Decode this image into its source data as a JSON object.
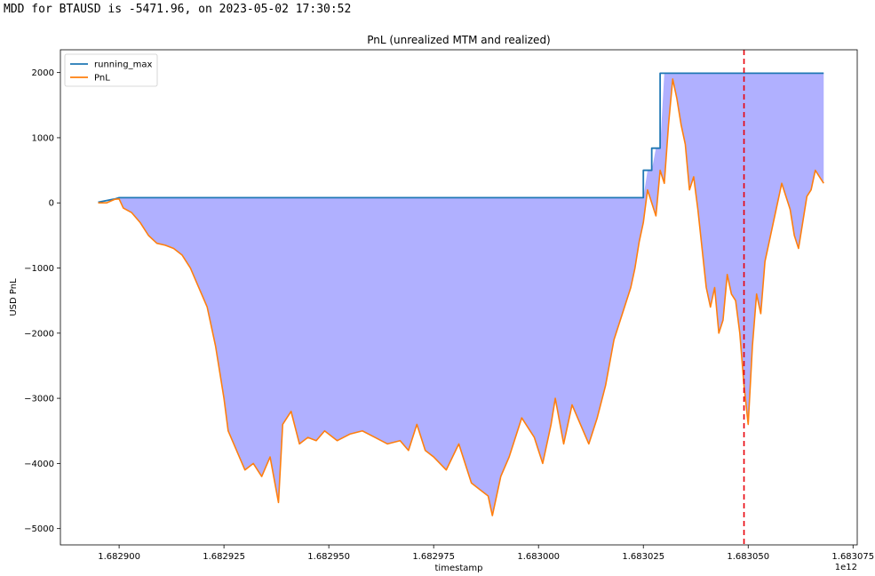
{
  "header": {
    "text": "MDD for BTAUSD is -5471.96, on 2023-05-02 17:30:52"
  },
  "chart_data": {
    "type": "line",
    "title": "PnL (unrealized MTM and realized)",
    "xlabel": "timestamp",
    "ylabel": "USD PnL",
    "x_offset_label": "1e12",
    "xlim": [
      1682886000,
      1683076000
    ],
    "ylim": [
      -5250,
      2350
    ],
    "x_ticks": [
      1682900000,
      1682925000,
      1682950000,
      1682975000,
      1683000000,
      1683025000,
      1683050000,
      1683075000
    ],
    "x_tick_labels": [
      "1.682900",
      "1.682925",
      "1.682950",
      "1.682975",
      "1.683000",
      "1.683025",
      "1.683050",
      "1.683075"
    ],
    "y_ticks": [
      -5000,
      -4000,
      -3000,
      -2000,
      -1000,
      0,
      1000,
      2000
    ],
    "y_tick_labels": [
      "−5000",
      "−4000",
      "−3000",
      "−2000",
      "−1000",
      "0",
      "1000",
      "2000"
    ],
    "legend": {
      "placement": "top-left",
      "entries": [
        "running_max",
        "PnL"
      ]
    },
    "grid": false,
    "mdd_marker": {
      "x": 1683049000,
      "color": "#e8000b",
      "style": "dashed"
    },
    "fill_color": "#b0b0ff",
    "series": [
      {
        "name": "running_max",
        "color": "#1f77b4",
        "x": [
          1682895000,
          1682899000,
          1682900000,
          1683025000,
          1683025001,
          1683027000,
          1683027001,
          1683029000,
          1683029001,
          1683032000,
          1683032001,
          1683068000
        ],
        "values": [
          10,
          60,
          80,
          80,
          500,
          500,
          840,
          840,
          1990,
          1990,
          1990,
          1990
        ]
      },
      {
        "name": "PnL",
        "color": "#ff7f0e",
        "x": [
          1682895000,
          1682897000,
          1682899000,
          1682900000,
          1682901000,
          1682903000,
          1682905000,
          1682907000,
          1682909000,
          1682911000,
          1682913000,
          1682915000,
          1682917000,
          1682919000,
          1682921000,
          1682923000,
          1682925000,
          1682926000,
          1682928000,
          1682930000,
          1682932000,
          1682934000,
          1682936000,
          1682938000,
          1682939000,
          1682941000,
          1682943000,
          1682945000,
          1682947000,
          1682949000,
          1682952000,
          1682955000,
          1682958000,
          1682961000,
          1682964000,
          1682967000,
          1682969000,
          1682971000,
          1682973000,
          1682975000,
          1682978000,
          1682981000,
          1682984000,
          1682986000,
          1682988000,
          1682989000,
          1682991000,
          1682993000,
          1682996000,
          1682999000,
          1683001000,
          1683003000,
          1683004000,
          1683006000,
          1683008000,
          1683010000,
          1683012000,
          1683014000,
          1683016000,
          1683018000,
          1683020000,
          1683022000,
          1683023000,
          1683024000,
          1683025000,
          1683026000,
          1683027000,
          1683028000,
          1683029000,
          1683030000,
          1683031000,
          1683032000,
          1683033000,
          1683034000,
          1683035000,
          1683036000,
          1683037000,
          1683038000,
          1683039000,
          1683040000,
          1683041000,
          1683042000,
          1683043000,
          1683044000,
          1683045000,
          1683046000,
          1683047000,
          1683048000,
          1683049000,
          1683050000,
          1683051000,
          1683052000,
          1683053000,
          1683054000,
          1683055000,
          1683056000,
          1683057000,
          1683058000,
          1683059000,
          1683060000,
          1683061000,
          1683062000,
          1683063000,
          1683064000,
          1683065000,
          1683066000,
          1683067000,
          1683068000
        ],
        "values": [
          0,
          0,
          55,
          60,
          -80,
          -150,
          -300,
          -500,
          -620,
          -650,
          -700,
          -800,
          -1000,
          -1300,
          -1600,
          -2200,
          -3000,
          -3500,
          -3800,
          -4100,
          -4000,
          -4200,
          -3900,
          -4600,
          -3400,
          -3200,
          -3700,
          -3600,
          -3650,
          -3500,
          -3650,
          -3550,
          -3500,
          -3600,
          -3700,
          -3650,
          -3800,
          -3400,
          -3800,
          -3900,
          -4100,
          -3700,
          -4300,
          -4400,
          -4500,
          -4800,
          -4200,
          -3900,
          -3300,
          -3600,
          -4000,
          -3400,
          -3000,
          -3700,
          -3100,
          -3400,
          -3700,
          -3300,
          -2800,
          -2100,
          -1700,
          -1300,
          -1000,
          -600,
          -300,
          200,
          0,
          -200,
          500,
          300,
          1200,
          1900,
          1600,
          1200,
          900,
          200,
          400,
          -100,
          -700,
          -1300,
          -1600,
          -1300,
          -2000,
          -1800,
          -1100,
          -1400,
          -1500,
          -2000,
          -2800,
          -3400,
          -2200,
          -1400,
          -1700,
          -900,
          -600,
          -300,
          0,
          300,
          100,
          -100,
          -500,
          -700,
          -300,
          100,
          200,
          500,
          400,
          300
        ]
      }
    ]
  }
}
